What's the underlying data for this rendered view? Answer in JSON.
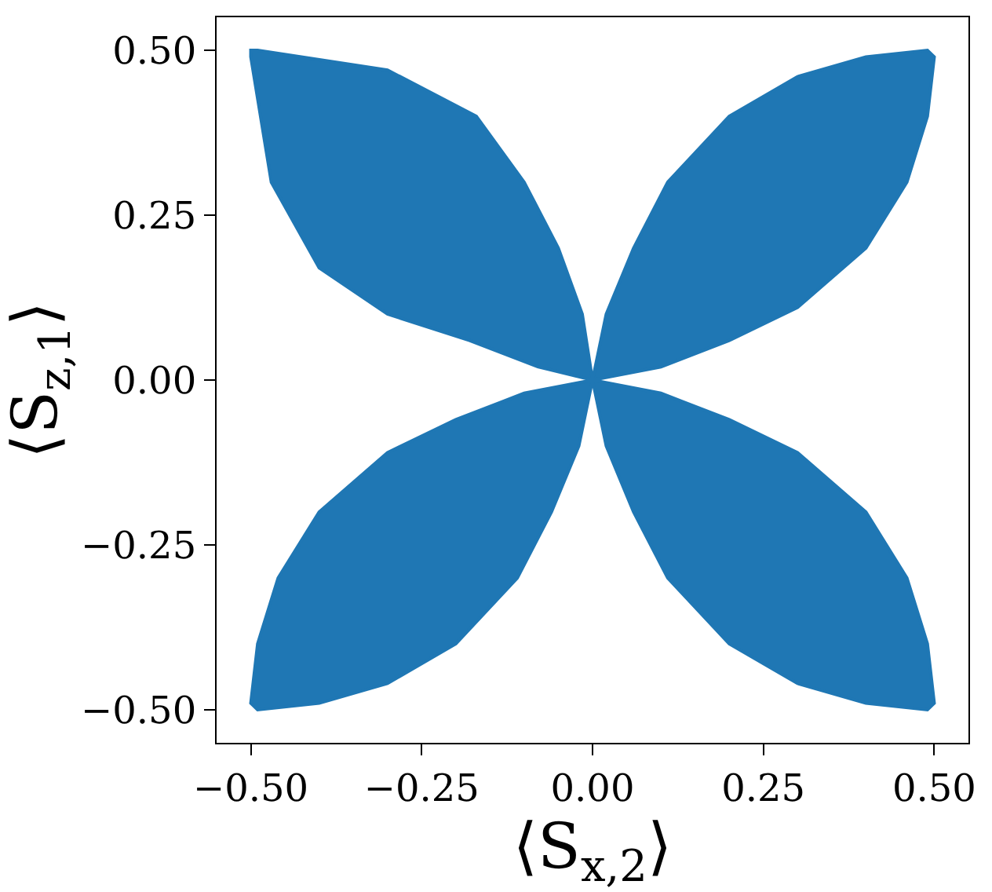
{
  "chart_data": {
    "type": "area",
    "xlabel": "⟨S$_{x,2}$⟩",
    "ylabel": "⟨S$_{z,1}$⟩",
    "xlim": [
      -0.55,
      0.55
    ],
    "ylim": [
      -0.55,
      0.55
    ],
    "xticks": [
      {
        "value": -0.5,
        "label": "−0.50"
      },
      {
        "value": -0.25,
        "label": "−0.25"
      },
      {
        "value": 0,
        "label": "0.00"
      },
      {
        "value": 0.25,
        "label": "0.25"
      },
      {
        "value": 0.5,
        "label": "0.50"
      }
    ],
    "yticks": [
      {
        "value": -0.5,
        "label": "−0.50"
      },
      {
        "value": -0.25,
        "label": "−0.25"
      },
      {
        "value": 0,
        "label": "0.00"
      },
      {
        "value": 0.25,
        "label": "0.25"
      },
      {
        "value": 0.5,
        "label": "0.50"
      }
    ],
    "grid": false,
    "marker": "none",
    "series": [
      {
        "color": "#1f77b4",
        "x": [
          0,
          0.02,
          0.06,
          0.11,
          0.2,
          0.3,
          0.4,
          0.49,
          0.5,
          0.49,
          0.46,
          0.4,
          0.3,
          0.2,
          0.1,
          0,
          0.1,
          0.2,
          0.3,
          0.4,
          0.46,
          0.49,
          0.5,
          0.49,
          0.4,
          0.3,
          0.2,
          0.11,
          0.06,
          0.02,
          0,
          -0.02,
          -0.06,
          -0.11,
          -0.2,
          -0.3,
          -0.4,
          -0.49,
          -0.5,
          -0.49,
          -0.46,
          -0.4,
          -0.3,
          -0.2,
          -0.1,
          0,
          -0.08,
          -0.18,
          -0.3,
          -0.4,
          -0.47,
          -0.5,
          -0.5,
          -0.49,
          -0.3,
          -0.17,
          -0.1,
          -0.05,
          -0.015,
          0
        ],
        "values": [
          0,
          0.1,
          0.2,
          0.3,
          0.4,
          0.46,
          0.49,
          0.5,
          0.49,
          0.4,
          0.3,
          0.2,
          0.11,
          0.06,
          0.02,
          0,
          -0.02,
          -0.06,
          -0.11,
          -0.2,
          -0.3,
          -0.4,
          -0.49,
          -0.5,
          -0.49,
          -0.46,
          -0.4,
          -0.3,
          -0.2,
          -0.1,
          0,
          -0.1,
          -0.2,
          -0.3,
          -0.4,
          -0.46,
          -0.49,
          -0.5,
          -0.49,
          -0.4,
          -0.3,
          -0.2,
          -0.11,
          -0.06,
          -0.02,
          0,
          0.02,
          0.06,
          0.1,
          0.17,
          0.3,
          0.49,
          0.5,
          0.5,
          0.47,
          0.4,
          0.3,
          0.2,
          0.1,
          0
        ]
      }
    ]
  }
}
